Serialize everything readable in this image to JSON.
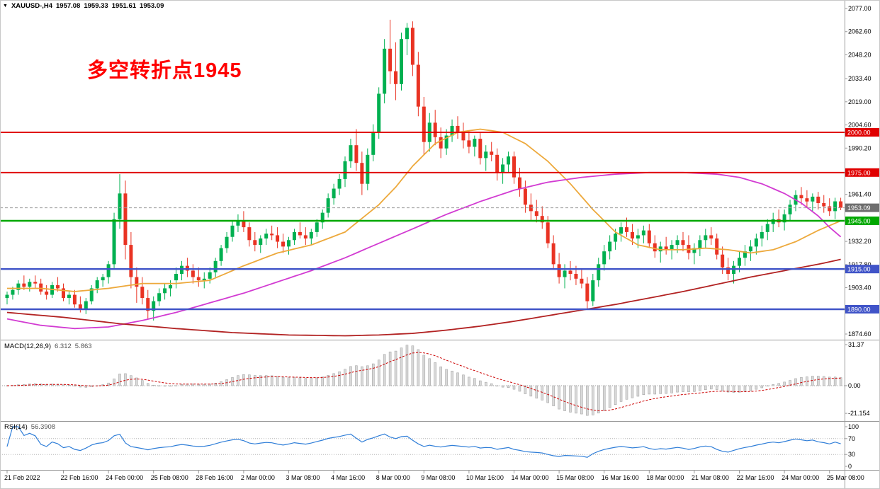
{
  "window": {
    "symbol": "XAUUSD-,H4",
    "open": "1957.08",
    "high": "1959.33",
    "low": "1951.61",
    "close": "1953.09"
  },
  "annotation": {
    "text": "多空转折点1945",
    "color": "#ff0000"
  },
  "indicators": {
    "macd": {
      "name": "MACD(12,26,9)",
      "value_main": "6.312",
      "value_signal": "5.863",
      "axis_labels": [
        {
          "text": "31.37",
          "value": 31.37
        },
        {
          "text": "0.00",
          "value": 0
        },
        {
          "text": "-21.154",
          "value": -21.154
        }
      ]
    },
    "rsi": {
      "name": "RSI(14)",
      "value": "56.3908",
      "axis_labels": [
        {
          "text": "100",
          "value": 100
        },
        {
          "text": "70",
          "value": 70
        },
        {
          "text": "30",
          "value": 30
        },
        {
          "text": "0",
          "value": 0
        }
      ],
      "levels": [
        70,
        30
      ]
    }
  },
  "colors": {
    "candle_up": "#00b050",
    "candle_down": "#e93323",
    "macd_histogram": "#d9d9d9",
    "macd_histogram_border": "#9a9a9a",
    "macd_signal": "#cc0000",
    "rsi_line": "#2f7ed8",
    "axis_line": "#9a9a9a",
    "text": "#000000"
  },
  "chart_data": {
    "type": "candlestick",
    "symbol": "XAUUSD",
    "timeframe": "H4",
    "y_axis": {
      "min": 1874.6,
      "max": 2077.0,
      "ticks": [
        2077.0,
        2062.6,
        2048.2,
        2033.4,
        2019.0,
        2004.6,
        1990.2,
        1961.4,
        1932.2,
        1917.8,
        1903.4,
        1874.6
      ]
    },
    "h_lines": [
      {
        "value": 2000.0,
        "label": "2000.00",
        "color": "#e00000",
        "width": 2
      },
      {
        "value": 1975.0,
        "label": "1975.00",
        "color": "#e00000",
        "width": 2
      },
      {
        "value": 1945.0,
        "label": "1945.00",
        "color": "#00a800",
        "width": 2.4
      },
      {
        "value": 1915.0,
        "label": "1915.00",
        "color": "#4054c8",
        "width": 2.4
      },
      {
        "value": 1890.0,
        "label": "1890.00",
        "color": "#4054c8",
        "width": 2.4
      }
    ],
    "current_price": {
      "value": 1953.09,
      "label": "1953.09",
      "color": "#999999",
      "badge_color": "#6e6e6e"
    },
    "x_labels": [
      {
        "text": "21 Feb 2022",
        "bar": 0
      },
      {
        "text": "22 Feb 16:00",
        "bar": 10
      },
      {
        "text": "24 Feb 00:00",
        "bar": 18
      },
      {
        "text": "25 Feb 08:00",
        "bar": 26
      },
      {
        "text": "28 Feb 16:00",
        "bar": 34
      },
      {
        "text": "2 Mar 00:00",
        "bar": 42
      },
      {
        "text": "3 Mar 08:00",
        "bar": 50
      },
      {
        "text": "4 Mar 16:00",
        "bar": 58
      },
      {
        "text": "8 Mar 00:00",
        "bar": 66
      },
      {
        "text": "9 Mar 08:00",
        "bar": 74
      },
      {
        "text": "10 Mar 16:00",
        "bar": 82
      },
      {
        "text": "14 Mar 00:00",
        "bar": 90
      },
      {
        "text": "15 Mar 08:00",
        "bar": 98
      },
      {
        "text": "16 Mar 16:00",
        "bar": 106
      },
      {
        "text": "18 Mar 00:00",
        "bar": 114
      },
      {
        "text": "21 Mar 08:00",
        "bar": 122
      },
      {
        "text": "22 Mar 16:00",
        "bar": 130
      },
      {
        "text": "24 Mar 00:00",
        "bar": 138
      },
      {
        "text": "25 Mar 08:00",
        "bar": 146
      }
    ],
    "candles": [
      [
        1897,
        1901,
        1893,
        1899
      ],
      [
        1899,
        1904,
        1896,
        1902
      ],
      [
        1902,
        1908,
        1899,
        1906
      ],
      [
        1906,
        1911,
        1902,
        1904
      ],
      [
        1904,
        1909,
        1901,
        1907
      ],
      [
        1907,
        1911,
        1903,
        1906
      ],
      [
        1906,
        1909,
        1899,
        1901
      ],
      [
        1901,
        1905,
        1896,
        1899
      ],
      [
        1899,
        1907,
        1897,
        1905
      ],
      [
        1905,
        1910,
        1901,
        1903
      ],
      [
        1903,
        1906,
        1895,
        1897
      ],
      [
        1897,
        1901,
        1893,
        1899
      ],
      [
        1899,
        1902,
        1891,
        1893
      ],
      [
        1893,
        1898,
        1888,
        1890
      ],
      [
        1890,
        1897,
        1887,
        1895
      ],
      [
        1895,
        1905,
        1893,
        1903
      ],
      [
        1903,
        1910,
        1900,
        1908
      ],
      [
        1908,
        1912,
        1904,
        1910
      ],
      [
        1910,
        1920,
        1906,
        1918
      ],
      [
        1918,
        1950,
        1915,
        1946
      ],
      [
        1946,
        1974,
        1940,
        1962
      ],
      [
        1962,
        1970,
        1921,
        1930
      ],
      [
        1930,
        1938,
        1903,
        1910
      ],
      [
        1910,
        1916,
        1894,
        1904
      ],
      [
        1904,
        1910,
        1893,
        1897
      ],
      [
        1897,
        1902,
        1884,
        1889
      ],
      [
        1889,
        1898,
        1883,
        1895
      ],
      [
        1895,
        1903,
        1892,
        1900
      ],
      [
        1900,
        1906,
        1896,
        1903
      ],
      [
        1903,
        1908,
        1898,
        1905
      ],
      [
        1908,
        1916,
        1903,
        1912
      ],
      [
        1912,
        1920,
        1908,
        1917
      ],
      [
        1917,
        1922,
        1910,
        1914
      ],
      [
        1914,
        1918,
        1906,
        1910
      ],
      [
        1910,
        1916,
        1904,
        1908
      ],
      [
        1908,
        1913,
        1903,
        1909
      ],
      [
        1909,
        1916,
        1906,
        1913
      ],
      [
        1913,
        1922,
        1910,
        1920
      ],
      [
        1920,
        1930,
        1917,
        1928
      ],
      [
        1928,
        1938,
        1925,
        1935
      ],
      [
        1935,
        1945,
        1932,
        1942
      ],
      [
        1942,
        1949,
        1938,
        1945
      ],
      [
        1945,
        1951,
        1938,
        1941
      ],
      [
        1941,
        1944,
        1929,
        1933
      ],
      [
        1933,
        1938,
        1926,
        1930
      ],
      [
        1930,
        1936,
        1925,
        1934
      ],
      [
        1934,
        1940,
        1930,
        1937
      ],
      [
        1937,
        1942,
        1933,
        1936
      ],
      [
        1936,
        1941,
        1928,
        1932
      ],
      [
        1932,
        1937,
        1925,
        1929
      ],
      [
        1929,
        1935,
        1924,
        1933
      ],
      [
        1933,
        1940,
        1930,
        1938
      ],
      [
        1938,
        1944,
        1934,
        1936
      ],
      [
        1936,
        1941,
        1930,
        1934
      ],
      [
        1934,
        1940,
        1930,
        1938
      ],
      [
        1938,
        1946,
        1935,
        1944
      ],
      [
        1944,
        1952,
        1940,
        1950
      ],
      [
        1950,
        1962,
        1947,
        1959
      ],
      [
        1959,
        1968,
        1955,
        1965
      ],
      [
        1965,
        1974,
        1961,
        1971
      ],
      [
        1971,
        1985,
        1966,
        1982
      ],
      [
        1982,
        1996,
        1978,
        1992
      ],
      [
        1992,
        2002,
        1976,
        1981
      ],
      [
        1981,
        1988,
        1961,
        1968
      ],
      [
        1968,
        1990,
        1964,
        1986
      ],
      [
        1986,
        2005,
        1982,
        2000
      ],
      [
        2000,
        2028,
        1996,
        2024
      ],
      [
        2024,
        2058,
        2018,
        2052
      ],
      [
        2052,
        2070,
        2030,
        2038
      ],
      [
        2038,
        2056,
        2020,
        2030
      ],
      [
        2030,
        2062,
        2026,
        2058
      ],
      [
        2058,
        2068,
        2048,
        2065
      ],
      [
        2065,
        2069,
        2035,
        2042
      ],
      [
        2042,
        2050,
        2010,
        2016
      ],
      [
        2016,
        2022,
        1986,
        1994
      ],
      [
        1994,
        2012,
        1988,
        2006
      ],
      [
        2006,
        2014,
        1992,
        1997
      ],
      [
        1997,
        2003,
        1984,
        1990
      ],
      [
        1990,
        2002,
        1986,
        1998
      ],
      [
        1998,
        2008,
        1994,
        2004
      ],
      [
        2004,
        2010,
        1996,
        2000
      ],
      [
        2000,
        2006,
        1990,
        1995
      ],
      [
        1995,
        2001,
        1987,
        1991
      ],
      [
        1991,
        1998,
        1985,
        1996
      ],
      [
        1996,
        2000,
        1980,
        1984
      ],
      [
        1984,
        1992,
        1976,
        1988
      ],
      [
        1988,
        1994,
        1982,
        1986
      ],
      [
        1986,
        1990,
        1970,
        1975
      ],
      [
        1975,
        1984,
        1968,
        1980
      ],
      [
        1980,
        1988,
        1975,
        1985
      ],
      [
        1985,
        1988,
        1968,
        1972
      ],
      [
        1972,
        1978,
        1960,
        1965
      ],
      [
        1965,
        1970,
        1950,
        1955
      ],
      [
        1955,
        1962,
        1945,
        1951
      ],
      [
        1951,
        1958,
        1944,
        1948
      ],
      [
        1948,
        1954,
        1940,
        1944
      ],
      [
        1944,
        1948,
        1928,
        1931
      ],
      [
        1931,
        1936,
        1915,
        1918
      ],
      [
        1918,
        1925,
        1906,
        1910
      ],
      [
        1910,
        1918,
        1903,
        1914
      ],
      [
        1914,
        1920,
        1908,
        1912
      ],
      [
        1912,
        1917,
        1905,
        1909
      ],
      [
        1909,
        1915,
        1903,
        1906
      ],
      [
        1906,
        1910,
        1890,
        1895
      ],
      [
        1895,
        1912,
        1892,
        1908
      ],
      [
        1908,
        1922,
        1904,
        1918
      ],
      [
        1918,
        1930,
        1914,
        1926
      ],
      [
        1926,
        1936,
        1921,
        1932
      ],
      [
        1932,
        1940,
        1927,
        1937
      ],
      [
        1937,
        1944,
        1932,
        1941
      ],
      [
        1941,
        1947,
        1935,
        1938
      ],
      [
        1938,
        1943,
        1930,
        1934
      ],
      [
        1934,
        1940,
        1928,
        1936
      ],
      [
        1936,
        1942,
        1931,
        1939
      ],
      [
        1939,
        1943,
        1928,
        1931
      ],
      [
        1931,
        1936,
        1922,
        1926
      ],
      [
        1926,
        1932,
        1919,
        1929
      ],
      [
        1929,
        1935,
        1924,
        1927
      ],
      [
        1927,
        1933,
        1921,
        1930
      ],
      [
        1930,
        1936,
        1925,
        1933
      ],
      [
        1933,
        1938,
        1926,
        1930
      ],
      [
        1930,
        1936,
        1921,
        1925
      ],
      [
        1925,
        1931,
        1918,
        1928
      ],
      [
        1928,
        1936,
        1923,
        1933
      ],
      [
        1933,
        1940,
        1928,
        1936
      ],
      [
        1936,
        1941,
        1930,
        1934
      ],
      [
        1934,
        1937,
        1921,
        1924
      ],
      [
        1924,
        1929,
        1912,
        1916
      ],
      [
        1916,
        1922,
        1908,
        1912
      ],
      [
        1912,
        1920,
        1906,
        1917
      ],
      [
        1917,
        1926,
        1913,
        1922
      ],
      [
        1922,
        1930,
        1917,
        1926
      ],
      [
        1926,
        1933,
        1920,
        1929
      ],
      [
        1929,
        1937,
        1924,
        1934
      ],
      [
        1934,
        1942,
        1929,
        1938
      ],
      [
        1938,
        1946,
        1933,
        1943
      ],
      [
        1943,
        1950,
        1938,
        1946
      ],
      [
        1946,
        1952,
        1941,
        1944
      ],
      [
        1944,
        1952,
        1939,
        1949
      ],
      [
        1949,
        1958,
        1945,
        1955
      ],
      [
        1955,
        1964,
        1951,
        1961
      ],
      [
        1961,
        1966,
        1955,
        1959
      ],
      [
        1959,
        1964,
        1953,
        1957
      ],
      [
        1957,
        1962,
        1951,
        1960
      ],
      [
        1960,
        1963,
        1952,
        1956
      ],
      [
        1956,
        1961,
        1950,
        1954
      ],
      [
        1954,
        1959,
        1948,
        1951
      ],
      [
        1951,
        1959.33,
        1946,
        1957.08
      ],
      [
        1957.08,
        1959.33,
        1951.61,
        1953.09
      ]
    ],
    "moving_averages": [
      {
        "name": "ma-fast-orange",
        "color": "#eda93c",
        "points": [
          [
            0,
            1903
          ],
          [
            6,
            1903
          ],
          [
            12,
            1901
          ],
          [
            18,
            1903
          ],
          [
            24,
            1906
          ],
          [
            30,
            1906
          ],
          [
            36,
            1908
          ],
          [
            42,
            1917
          ],
          [
            48,
            1925
          ],
          [
            54,
            1930
          ],
          [
            60,
            1938
          ],
          [
            66,
            1955
          ],
          [
            69,
            1966
          ],
          [
            72,
            1979
          ],
          [
            74,
            1986
          ],
          [
            76,
            1993
          ],
          [
            80,
            2000
          ],
          [
            84,
            2002
          ],
          [
            88,
            2000
          ],
          [
            92,
            1993
          ],
          [
            96,
            1982
          ],
          [
            100,
            1968
          ],
          [
            104,
            1952
          ],
          [
            108,
            1938
          ],
          [
            112,
            1930
          ],
          [
            116,
            1927
          ],
          [
            120,
            1927
          ],
          [
            124,
            1928
          ],
          [
            128,
            1927
          ],
          [
            132,
            1925
          ],
          [
            136,
            1927
          ],
          [
            140,
            1932
          ],
          [
            144,
            1939
          ],
          [
            148,
            1945
          ]
        ]
      },
      {
        "name": "ma-mid-magenta",
        "color": "#d23bd2",
        "points": [
          [
            0,
            1884
          ],
          [
            6,
            1880
          ],
          [
            12,
            1878
          ],
          [
            18,
            1879
          ],
          [
            24,
            1883
          ],
          [
            30,
            1888
          ],
          [
            36,
            1894
          ],
          [
            42,
            1900
          ],
          [
            48,
            1907
          ],
          [
            54,
            1914
          ],
          [
            60,
            1922
          ],
          [
            66,
            1931
          ],
          [
            72,
            1940
          ],
          [
            78,
            1949
          ],
          [
            84,
            1957
          ],
          [
            90,
            1964
          ],
          [
            96,
            1969
          ],
          [
            102,
            1972
          ],
          [
            108,
            1974
          ],
          [
            114,
            1975
          ],
          [
            120,
            1975
          ],
          [
            126,
            1974
          ],
          [
            130,
            1972
          ],
          [
            134,
            1968
          ],
          [
            138,
            1962
          ],
          [
            141,
            1956
          ],
          [
            144,
            1948
          ],
          [
            146,
            1941
          ],
          [
            148,
            1935
          ]
        ]
      },
      {
        "name": "ma-slow-darkred",
        "color": "#b22222",
        "points": [
          [
            0,
            1888
          ],
          [
            10,
            1885
          ],
          [
            20,
            1881
          ],
          [
            30,
            1878
          ],
          [
            40,
            1875.5
          ],
          [
            50,
            1874
          ],
          [
            60,
            1873.5
          ],
          [
            66,
            1874
          ],
          [
            72,
            1875
          ],
          [
            78,
            1877
          ],
          [
            84,
            1879.5
          ],
          [
            90,
            1882.5
          ],
          [
            96,
            1886
          ],
          [
            102,
            1889.5
          ],
          [
            108,
            1893
          ],
          [
            114,
            1897
          ],
          [
            120,
            1901
          ],
          [
            126,
            1905.5
          ],
          [
            132,
            1910
          ],
          [
            138,
            1914
          ],
          [
            144,
            1918
          ],
          [
            148,
            1921
          ]
        ]
      }
    ]
  }
}
